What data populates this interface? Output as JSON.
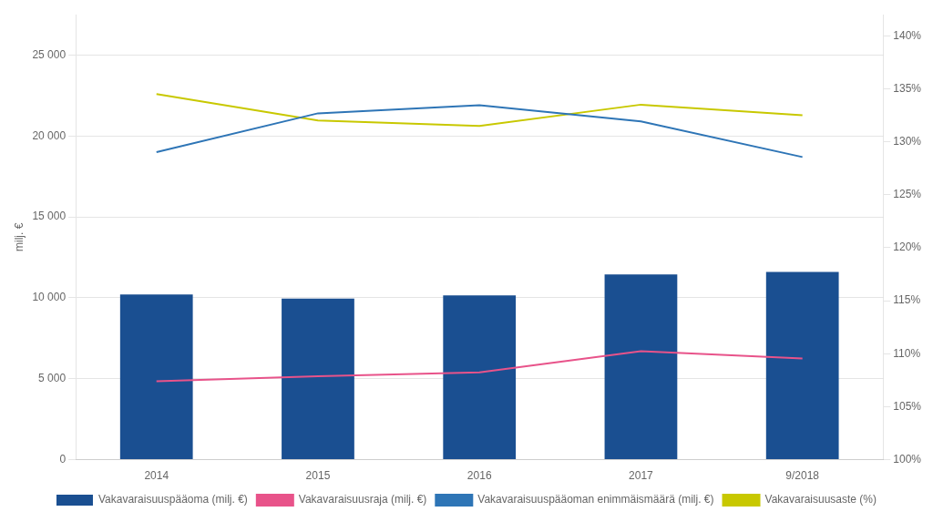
{
  "chart_data": {
    "type": "bar",
    "ylabel": "milj. €",
    "categories": [
      "2014",
      "2015",
      "2016",
      "2017",
      "9/2018"
    ],
    "series": [
      {
        "name": "Vakavaraisuuspääoma (milj. €)",
        "type": "bar",
        "color": "#1a4f91",
        "values": [
          10200,
          9950,
          10150,
          11450,
          11600
        ]
      },
      {
        "name": "Vakavaraisuusraja (milj. €)",
        "type": "line",
        "color": "#e8538a",
        "values": [
          4850,
          5150,
          5400,
          6700,
          6250
        ]
      },
      {
        "name": "Vakavaraisuuspääoman enimmäismäärä (milj. €)",
        "type": "line",
        "color": "#2e75b6",
        "values": [
          19000,
          21400,
          21900,
          20900,
          18700
        ]
      },
      {
        "name": "Vakavaraisuusaste (%)",
        "type": "line",
        "color": "#c8c800",
        "axis": "y2",
        "values": [
          134.5,
          132.0,
          131.5,
          133.5,
          132.5
        ]
      }
    ],
    "ylim": [
      0,
      27500
    ],
    "yticks": [
      0,
      {
        "value": 5000,
        "label": "5 000"
      },
      {
        "value": 10000,
        "label": "10 000"
      },
      {
        "value": 15000,
        "label": "15 000"
      },
      {
        "value": 20000,
        "label": "20 000"
      },
      {
        "value": 25000,
        "label": "25 000"
      }
    ],
    "y2lim": [
      100,
      142.0
    ],
    "y2ticks": [
      {
        "value": 100,
        "label": "100%"
      },
      {
        "value": 105,
        "label": "105%"
      },
      {
        "value": 110,
        "label": "110%"
      },
      {
        "value": 115,
        "label": "115%"
      },
      {
        "value": 120,
        "label": "120%"
      },
      {
        "value": 125,
        "label": "125%"
      },
      {
        "value": 130,
        "label": "130%"
      },
      {
        "value": 135,
        "label": "135%"
      },
      {
        "value": 140,
        "label": "140%"
      }
    ],
    "grid": true,
    "legend": "bottom"
  }
}
